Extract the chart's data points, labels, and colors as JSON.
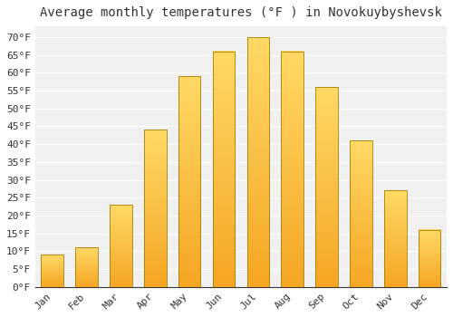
{
  "title": "Average monthly temperatures (°F ) in Novokuybyshevsk",
  "months": [
    "Jan",
    "Feb",
    "Mar",
    "Apr",
    "May",
    "Jun",
    "Jul",
    "Aug",
    "Sep",
    "Oct",
    "Nov",
    "Dec"
  ],
  "values": [
    9,
    11,
    23,
    44,
    59,
    66,
    70,
    66,
    56,
    41,
    27,
    16
  ],
  "bar_color_bottom": "#F5A623",
  "bar_color_top": "#FFD966",
  "bar_edge_color": "#A08000",
  "background_color": "#FFFFFF",
  "plot_bg_color": "#F0F0F0",
  "grid_color": "#FFFFFF",
  "text_color": "#333333",
  "title_fontsize": 10,
  "tick_fontsize": 8,
  "ylim": [
    0,
    73
  ],
  "yticks": [
    0,
    5,
    10,
    15,
    20,
    25,
    30,
    35,
    40,
    45,
    50,
    55,
    60,
    65,
    70
  ],
  "ylabel_suffix": "°F"
}
